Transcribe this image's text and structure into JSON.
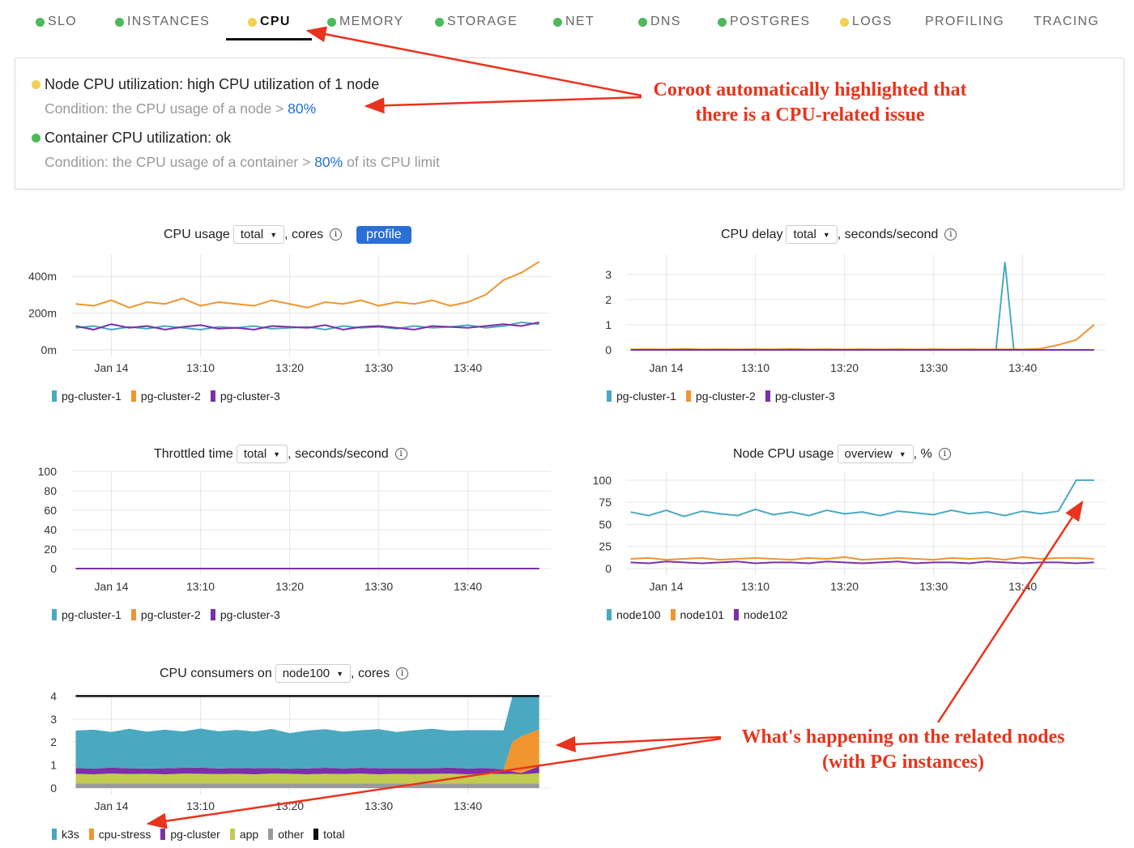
{
  "tabs": [
    {
      "label": "SLO",
      "status": "#4cb95a"
    },
    {
      "label": "INSTANCES",
      "status": "#4cb95a"
    },
    {
      "label": "CPU",
      "status": "#f2cf55",
      "active": true
    },
    {
      "label": "MEMORY",
      "status": "#4cb95a"
    },
    {
      "label": "STORAGE",
      "status": "#4cb95a"
    },
    {
      "label": "NET",
      "status": "#4cb95a"
    },
    {
      "label": "DNS",
      "status": "#4cb95a"
    },
    {
      "label": "POSTGRES",
      "status": "#4cb95a"
    },
    {
      "label": "LOGS",
      "status": "#f2cf55"
    },
    {
      "label": "PROFILING"
    },
    {
      "label": "TRACING"
    }
  ],
  "checks": [
    {
      "title": "Node CPU utilization: high CPU utilization of 1 node",
      "status": "#f2cf55",
      "cond_pre": "Condition: the CPU usage of a node > ",
      "cond_val": "80%",
      "cond_post": ""
    },
    {
      "title": "Container CPU utilization: ok",
      "status": "#4cb95a",
      "cond_pre": "Condition: the CPU usage of a container > ",
      "cond_val": "80%",
      "cond_post": " of its CPU limit"
    }
  ],
  "annotations": {
    "top": [
      "Coroot automatically highlighted that",
      "there is a CPU-related issue"
    ],
    "bottom": [
      "What's happening on the related nodes",
      "(with PG instances)"
    ],
    "color": "#e8341c"
  },
  "colors": {
    "cyan": "#4aa9c0",
    "orange": "#f0952f",
    "purple": "#7b2fa8",
    "lime": "#c3cb4f",
    "gray": "#9a9a9a",
    "black": "#111111"
  },
  "chart_data": [
    {
      "id": "cpu-usage",
      "type": "line",
      "title_pre": "CPU usage",
      "select": "total",
      "title_post": ", cores",
      "button": "profile",
      "x_ticks": [
        "Jan 14",
        "13:10",
        "13:20",
        "13:30",
        "13:40"
      ],
      "y_ticks": [
        "0m",
        "200m",
        "400m"
      ],
      "ylim": [
        0,
        520
      ],
      "y_tick_values": [
        0,
        200,
        400
      ],
      "x": [
        "12:56",
        "12:58",
        "13:00",
        "13:02",
        "13:04",
        "13:06",
        "13:08",
        "13:10",
        "13:12",
        "13:14",
        "13:16",
        "13:18",
        "13:20",
        "13:22",
        "13:24",
        "13:26",
        "13:28",
        "13:30",
        "13:32",
        "13:34",
        "13:36",
        "13:38",
        "13:40",
        "13:42",
        "13:44",
        "13:46",
        "13:48"
      ],
      "series": [
        {
          "name": "pg-cluster-1",
          "color": "#4aa9c0",
          "values": [
            120,
            130,
            110,
            125,
            115,
            130,
            120,
            110,
            125,
            120,
            130,
            115,
            120,
            125,
            110,
            130,
            120,
            125,
            115,
            130,
            120,
            125,
            135,
            120,
            130,
            150,
            140
          ]
        },
        {
          "name": "pg-cluster-2",
          "color": "#f0952f",
          "values": [
            250,
            240,
            270,
            230,
            260,
            250,
            280,
            240,
            260,
            250,
            240,
            270,
            250,
            230,
            260,
            250,
            270,
            240,
            260,
            250,
            270,
            240,
            260,
            300,
            380,
            420,
            480
          ]
        },
        {
          "name": "pg-cluster-3",
          "color": "#7b2fa8",
          "values": [
            130,
            110,
            140,
            120,
            130,
            110,
            125,
            135,
            115,
            120,
            110,
            130,
            125,
            120,
            135,
            110,
            125,
            130,
            120,
            110,
            130,
            125,
            120,
            130,
            140,
            130,
            150
          ]
        }
      ]
    },
    {
      "id": "cpu-delay",
      "type": "line",
      "title_pre": "CPU delay",
      "select": "total",
      "title_post": ", seconds/second",
      "x_ticks": [
        "Jan 14",
        "13:10",
        "13:20",
        "13:30",
        "13:40"
      ],
      "y_ticks": [
        "0",
        "1",
        "2",
        "3"
      ],
      "ylim": [
        0,
        3.8
      ],
      "y_tick_values": [
        0,
        1,
        2,
        3
      ],
      "x": [
        "12:56",
        "12:58",
        "13:00",
        "13:02",
        "13:04",
        "13:06",
        "13:08",
        "13:10",
        "13:12",
        "13:14",
        "13:16",
        "13:18",
        "13:20",
        "13:22",
        "13:24",
        "13:26",
        "13:28",
        "13:30",
        "13:32",
        "13:34",
        "13:36",
        "13:37",
        "13:38",
        "13:39",
        "13:40",
        "13:42",
        "13:44",
        "13:46",
        "13:48"
      ],
      "series": [
        {
          "name": "pg-cluster-1",
          "color": "#4aa9c0",
          "values": [
            0,
            0,
            0,
            0,
            0,
            0,
            0,
            0,
            0,
            0,
            0,
            0,
            0,
            0,
            0,
            0,
            0,
            0,
            0,
            0,
            0,
            0,
            3.5,
            0,
            0,
            0,
            0,
            0,
            0
          ]
        },
        {
          "name": "pg-cluster-2",
          "color": "#f0952f",
          "values": [
            0.02,
            0.03,
            0.02,
            0.04,
            0.02,
            0.03,
            0.02,
            0.03,
            0.02,
            0.04,
            0.02,
            0.03,
            0.02,
            0.03,
            0.02,
            0.03,
            0.02,
            0.03,
            0.02,
            0.03,
            0.02,
            0.03,
            0.02,
            0.03,
            0.02,
            0.05,
            0.2,
            0.4,
            1.0
          ]
        },
        {
          "name": "pg-cluster-3",
          "color": "#7b2fa8",
          "values": [
            0,
            0,
            0,
            0,
            0,
            0,
            0,
            0,
            0,
            0,
            0,
            0,
            0,
            0,
            0,
            0,
            0,
            0,
            0,
            0,
            0,
            0,
            0,
            0,
            0,
            0,
            0,
            0,
            0
          ]
        }
      ]
    },
    {
      "id": "throttled-time",
      "type": "line",
      "title_pre": "Throttled time",
      "select": "total",
      "title_post": ", seconds/second",
      "x_ticks": [
        "Jan 14",
        "13:10",
        "13:20",
        "13:30",
        "13:40"
      ],
      "y_ticks": [
        "0",
        "20",
        "40",
        "60",
        "80",
        "100"
      ],
      "ylim": [
        0,
        100
      ],
      "y_tick_values": [
        0,
        20,
        40,
        60,
        80,
        100
      ],
      "x": [
        "12:56",
        "13:48"
      ],
      "series": [
        {
          "name": "pg-cluster-1",
          "color": "#4aa9c0",
          "values": [
            0,
            0
          ]
        },
        {
          "name": "pg-cluster-2",
          "color": "#f0952f",
          "values": [
            0,
            0
          ]
        },
        {
          "name": "pg-cluster-3",
          "color": "#7b2fa8",
          "values": [
            0,
            0
          ]
        }
      ]
    },
    {
      "id": "node-cpu-usage",
      "type": "line",
      "title_pre": "Node CPU usage",
      "select": "overview",
      "title_post": ", %",
      "x_ticks": [
        "Jan 14",
        "13:10",
        "13:20",
        "13:30",
        "13:40"
      ],
      "y_ticks": [
        "0",
        "25",
        "50",
        "75",
        "100"
      ],
      "ylim": [
        0,
        110
      ],
      "y_tick_values": [
        0,
        25,
        50,
        75,
        100
      ],
      "x": [
        "12:56",
        "12:58",
        "13:00",
        "13:02",
        "13:04",
        "13:06",
        "13:08",
        "13:10",
        "13:12",
        "13:14",
        "13:16",
        "13:18",
        "13:20",
        "13:22",
        "13:24",
        "13:26",
        "13:28",
        "13:30",
        "13:32",
        "13:34",
        "13:36",
        "13:38",
        "13:40",
        "13:42",
        "13:44",
        "13:46",
        "13:48"
      ],
      "series": [
        {
          "name": "node100",
          "color": "#4aa9c0",
          "values": [
            64,
            60,
            66,
            59,
            65,
            62,
            60,
            67,
            61,
            64,
            60,
            66,
            62,
            64,
            60,
            65,
            63,
            61,
            66,
            62,
            64,
            60,
            65,
            62,
            65,
            100,
            100
          ]
        },
        {
          "name": "node101",
          "color": "#f0952f",
          "values": [
            11,
            12,
            10,
            11,
            12,
            10,
            11,
            12,
            11,
            10,
            12,
            11,
            13,
            10,
            11,
            12,
            11,
            10,
            12,
            11,
            12,
            10,
            13,
            11,
            12,
            12,
            11
          ]
        },
        {
          "name": "node102",
          "color": "#7b2fa8",
          "values": [
            7,
            6,
            8,
            7,
            6,
            7,
            8,
            6,
            7,
            7,
            6,
            8,
            7,
            6,
            7,
            8,
            6,
            7,
            7,
            6,
            8,
            7,
            6,
            7,
            7,
            6,
            7
          ]
        }
      ]
    },
    {
      "id": "cpu-consumers",
      "type": "area",
      "stacked": true,
      "title_pre": "CPU consumers on",
      "select": "node100",
      "title_post": ", cores",
      "x_ticks": [
        "Jan 14",
        "13:10",
        "13:20",
        "13:30",
        "13:40"
      ],
      "y_ticks": [
        "0",
        "1",
        "2",
        "3",
        "4"
      ],
      "ylim": [
        0,
        4.05
      ],
      "y_tick_values": [
        0,
        1,
        2,
        3,
        4
      ],
      "x": [
        "12:56",
        "12:58",
        "13:00",
        "13:02",
        "13:04",
        "13:06",
        "13:08",
        "13:10",
        "13:12",
        "13:14",
        "13:16",
        "13:18",
        "13:20",
        "13:22",
        "13:24",
        "13:26",
        "13:28",
        "13:30",
        "13:32",
        "13:34",
        "13:36",
        "13:38",
        "13:40",
        "13:42",
        "13:44",
        "13:45",
        "13:46",
        "13:48"
      ],
      "series": [
        {
          "name": "other",
          "color": "#9a9a9a",
          "values": [
            0.2,
            0.2,
            0.2,
            0.2,
            0.2,
            0.2,
            0.2,
            0.2,
            0.2,
            0.2,
            0.2,
            0.2,
            0.2,
            0.2,
            0.2,
            0.2,
            0.2,
            0.2,
            0.2,
            0.2,
            0.2,
            0.2,
            0.2,
            0.2,
            0.2,
            0.2,
            0.2,
            0.2
          ]
        },
        {
          "name": "app",
          "color": "#c3cb4f",
          "values": [
            0.42,
            0.4,
            0.43,
            0.41,
            0.42,
            0.4,
            0.43,
            0.42,
            0.41,
            0.42,
            0.4,
            0.43,
            0.42,
            0.4,
            0.42,
            0.41,
            0.43,
            0.4,
            0.42,
            0.41,
            0.42,
            0.43,
            0.4,
            0.42,
            0.41,
            0.42,
            0.4,
            0.45
          ]
        },
        {
          "name": "pg-cluster",
          "color": "#7b2fa8",
          "values": [
            0.25,
            0.24,
            0.26,
            0.25,
            0.23,
            0.26,
            0.25,
            0.27,
            0.24,
            0.25,
            0.26,
            0.24,
            0.22,
            0.25,
            0.26,
            0.24,
            0.25,
            0.26,
            0.24,
            0.25,
            0.24,
            0.26,
            0.25,
            0.25,
            0.2,
            0.1,
            0.05,
            0.3
          ]
        },
        {
          "name": "cpu-stress",
          "color": "#f0952f",
          "values": [
            0,
            0,
            0,
            0,
            0,
            0,
            0,
            0,
            0,
            0,
            0,
            0,
            0,
            0,
            0,
            0,
            0,
            0,
            0,
            0,
            0,
            0,
            0,
            0,
            0,
            1.3,
            1.6,
            1.6
          ]
        },
        {
          "name": "k3s",
          "color": "#4aa9c0",
          "values": [
            1.63,
            1.7,
            1.55,
            1.72,
            1.6,
            1.68,
            1.58,
            1.7,
            1.62,
            1.66,
            1.6,
            1.7,
            1.55,
            1.65,
            1.68,
            1.6,
            1.64,
            1.7,
            1.58,
            1.66,
            1.72,
            1.6,
            1.67,
            1.65,
            1.7,
            1.98,
            1.75,
            1.5
          ]
        },
        {
          "name": "total",
          "color": "#111111",
          "line": true,
          "values": [
            4,
            4,
            4,
            4,
            4,
            4,
            4,
            4,
            4,
            4,
            4,
            4,
            4,
            4,
            4,
            4,
            4,
            4,
            4,
            4,
            4,
            4,
            4,
            4,
            4,
            4,
            4,
            4
          ]
        }
      ],
      "legend_order": [
        "k3s",
        "cpu-stress",
        "pg-cluster",
        "app",
        "other",
        "total"
      ]
    }
  ]
}
